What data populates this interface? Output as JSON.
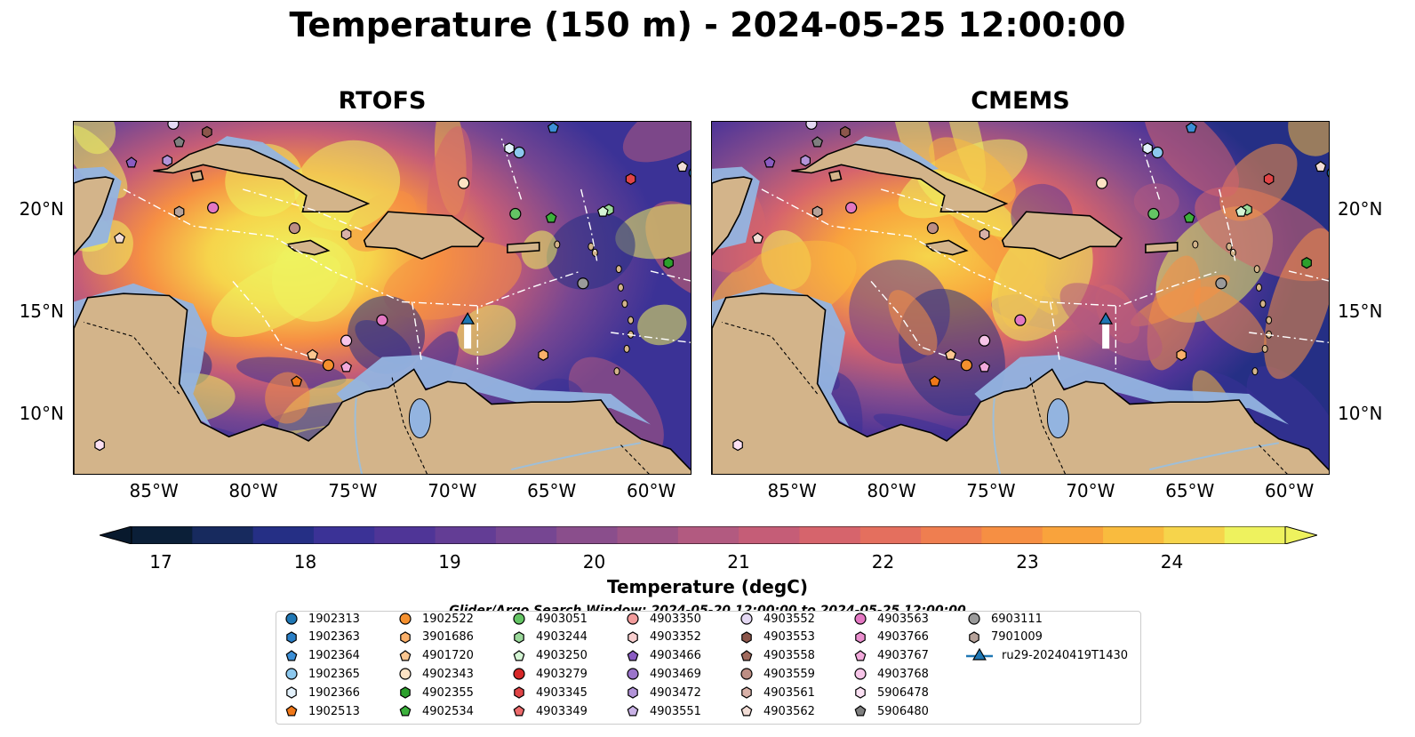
{
  "title": "Temperature (150 m) - 2024-05-25 12:00:00",
  "panels": [
    {
      "title": "RTOFS"
    },
    {
      "title": "CMEMS"
    }
  ],
  "lon_ticks": [
    "85°W",
    "80°W",
    "75°W",
    "70°W",
    "65°W",
    "60°W"
  ],
  "lat_ticks": [
    "20°N",
    "15°N",
    "10°N"
  ],
  "colorbar": {
    "label": "Temperature (degC)",
    "ticks": [
      "17",
      "18",
      "19",
      "20",
      "21",
      "22",
      "23",
      "24"
    ],
    "colors": [
      "#0b1f38",
      "#172a5e",
      "#252f85",
      "#3b3296",
      "#4f3597",
      "#633d95",
      "#764692",
      "#8a4e8c",
      "#9d5486",
      "#b25a80",
      "#c55d77",
      "#d6646c",
      "#e46f5e",
      "#ef7e50",
      "#f68f43",
      "#f9a33c",
      "#f9bb3e",
      "#f6d44b",
      "#eef25e"
    ],
    "under_color": "#08192d",
    "over_color": "#eef25e"
  },
  "search_window": "Glider/Argo Search Window: 2024-05-20 12:00:00 to 2024-05-25 12:00:00",
  "legend": [
    {
      "id": "1902313",
      "marker": "circle",
      "color": "#1f77b4"
    },
    {
      "id": "1902363",
      "marker": "hexagon",
      "color": "#2a7fc6"
    },
    {
      "id": "1902364",
      "marker": "pentagon",
      "color": "#3c8fd6"
    },
    {
      "id": "1902365",
      "marker": "circle",
      "color": "#8cc8ee"
    },
    {
      "id": "1902366",
      "marker": "hexagon",
      "color": "#e3f1fb"
    },
    {
      "id": "1902513",
      "marker": "pentagon",
      "color": "#f07818"
    },
    {
      "id": "1902522",
      "marker": "circle",
      "color": "#f5902e"
    },
    {
      "id": "3901686",
      "marker": "hexagon",
      "color": "#fbb06a"
    },
    {
      "id": "4901720",
      "marker": "pentagon",
      "color": "#fcc690"
    },
    {
      "id": "4902343",
      "marker": "circle",
      "color": "#fde3c4"
    },
    {
      "id": "4902355",
      "marker": "hexagon",
      "color": "#2ca02c"
    },
    {
      "id": "4902534",
      "marker": "pentagon",
      "color": "#3cb03c"
    },
    {
      "id": "4903051",
      "marker": "circle",
      "color": "#64c464"
    },
    {
      "id": "4903244",
      "marker": "hexagon",
      "color": "#9ad89a"
    },
    {
      "id": "4903250",
      "marker": "pentagon",
      "color": "#d4f5d4"
    },
    {
      "id": "4903279",
      "marker": "circle",
      "color": "#d62728"
    },
    {
      "id": "4903345",
      "marker": "hexagon",
      "color": "#e04446"
    },
    {
      "id": "4903349",
      "marker": "pentagon",
      "color": "#ec6a6b"
    },
    {
      "id": "4903350",
      "marker": "circle",
      "color": "#f29c9c"
    },
    {
      "id": "4903352",
      "marker": "hexagon",
      "color": "#f9cfcf"
    },
    {
      "id": "4903466",
      "marker": "pentagon",
      "color": "#8a5cc2"
    },
    {
      "id": "4903469",
      "marker": "circle",
      "color": "#9b74cb"
    },
    {
      "id": "4903472",
      "marker": "hexagon",
      "color": "#b293d8"
    },
    {
      "id": "4903551",
      "marker": "pentagon",
      "color": "#c9b2e6"
    },
    {
      "id": "4903552",
      "marker": "circle",
      "color": "#e4d8f3"
    },
    {
      "id": "4903553",
      "marker": "hexagon",
      "color": "#8c564b"
    },
    {
      "id": "4903558",
      "marker": "pentagon",
      "color": "#a06a5d"
    },
    {
      "id": "4903559",
      "marker": "circle",
      "color": "#bd8e84"
    },
    {
      "id": "4903561",
      "marker": "hexagon",
      "color": "#d9b1a8"
    },
    {
      "id": "4903562",
      "marker": "pentagon",
      "color": "#f2ddd6"
    },
    {
      "id": "4903563",
      "marker": "circle",
      "color": "#e377c2"
    },
    {
      "id": "4903766",
      "marker": "hexagon",
      "color": "#ea8fce"
    },
    {
      "id": "4903767",
      "marker": "pentagon",
      "color": "#f2a9db"
    },
    {
      "id": "4903768",
      "marker": "circle",
      "color": "#f7c5e8"
    },
    {
      "id": "5906478",
      "marker": "hexagon",
      "color": "#fbe0f3"
    },
    {
      "id": "5906480",
      "marker": "pentagon",
      "color": "#7f7f7f"
    },
    {
      "id": "6903111",
      "marker": "circle",
      "color": "#9a9a9a"
    },
    {
      "id": "7901009",
      "marker": "hexagon",
      "color": "#b6a29a"
    },
    {
      "id": "ru29-20240419T1430",
      "marker": "glider",
      "color": "#1f77b4"
    }
  ],
  "floats": [
    {
      "id": "1902313",
      "lon": -57.8,
      "lat": 21.8
    },
    {
      "id": "1902364",
      "lon": -64.9,
      "lat": 24.0
    },
    {
      "id": "1902365",
      "lon": -66.6,
      "lat": 22.8
    },
    {
      "id": "1902366",
      "lon": -67.1,
      "lat": 23.0
    },
    {
      "id": "1902513",
      "lon": -77.8,
      "lat": 11.6
    },
    {
      "id": "1902522",
      "lon": -76.2,
      "lat": 12.4
    },
    {
      "id": "3901686",
      "lon": -65.4,
      "lat": 12.9
    },
    {
      "id": "4901720",
      "lon": -77.0,
      "lat": 12.9
    },
    {
      "id": "4902343",
      "lon": -69.4,
      "lat": 21.3
    },
    {
      "id": "4902355",
      "lon": -59.1,
      "lat": 17.4
    },
    {
      "id": "4902534",
      "lon": -65.0,
      "lat": 19.6
    },
    {
      "id": "4903051",
      "lon": -66.8,
      "lat": 19.8
    },
    {
      "id": "4903244",
      "lon": -62.1,
      "lat": 20.0
    },
    {
      "id": "4903250",
      "lon": -62.4,
      "lat": 19.9
    },
    {
      "id": "4903345",
      "lon": -61.0,
      "lat": 21.5
    },
    {
      "id": "4903552",
      "lon": -84.0,
      "lat": 24.2
    },
    {
      "id": "4903553",
      "lon": -82.3,
      "lat": 23.8
    },
    {
      "id": "4903559",
      "lon": -77.9,
      "lat": 19.1
    },
    {
      "id": "4903561",
      "lon": -75.3,
      "lat": 18.8
    },
    {
      "id": "4903563",
      "lon": -82.0,
      "lat": 20.1
    },
    {
      "id": "4903767",
      "lon": -75.3,
      "lat": 12.3
    },
    {
      "id": "4903768",
      "lon": -75.3,
      "lat": 13.6
    },
    {
      "id": "5906478",
      "lon": -87.7,
      "lat": 8.5
    },
    {
      "id": "5906480",
      "lon": -83.7,
      "lat": 23.3
    },
    {
      "id": "6903111",
      "lon": -63.4,
      "lat": 16.4
    },
    {
      "id": "7901009",
      "lon": -83.7,
      "lat": 19.9
    },
    {
      "id": "4903563",
      "lon": -73.5,
      "lat": 14.6
    },
    {
      "id": "4903562",
      "lon": -86.7,
      "lat": 18.6
    },
    {
      "id": "4903562",
      "lon": -58.4,
      "lat": 22.1
    },
    {
      "id": "4903472",
      "lon": -84.3,
      "lat": 22.4
    },
    {
      "id": "4903466",
      "lon": -86.1,
      "lat": 22.3
    }
  ],
  "glider": {
    "id": "ru29-20240419T1430",
    "lon": -69.2,
    "lat": 14.6
  }
}
